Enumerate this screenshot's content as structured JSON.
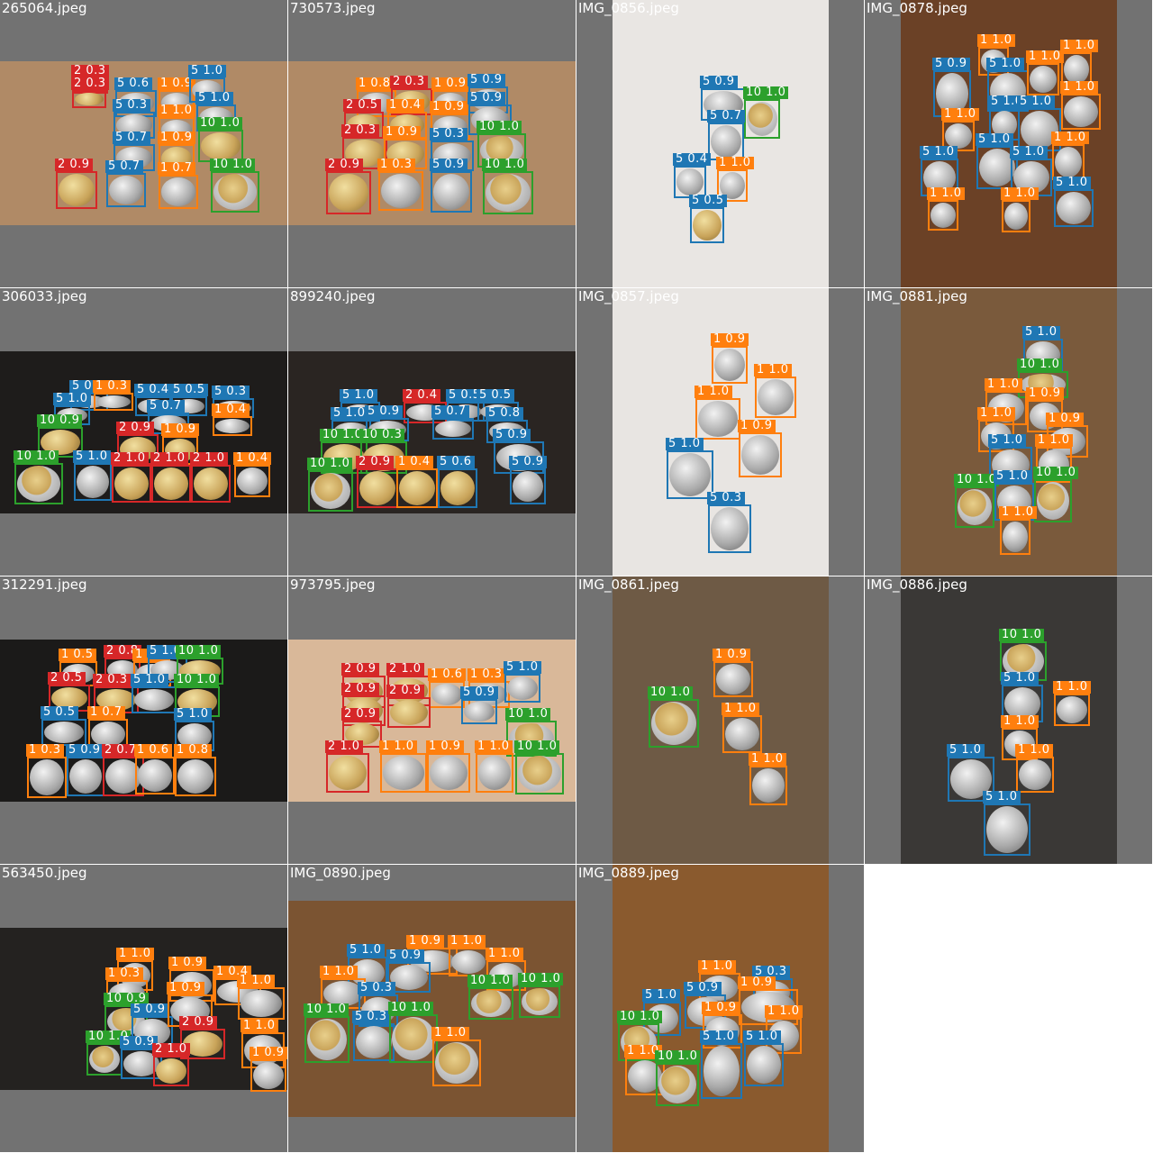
{
  "tiles": [
    {
      "file": "265064.jpeg",
      "bg": "#b08a66",
      "boxes": [
        {
          "label": "2 0.3",
          "cls": 2
        },
        {
          "label": "2 0.3",
          "cls": 2
        },
        {
          "label": "5 0.6",
          "cls": 5
        },
        {
          "label": "1 0.9",
          "cls": 1
        },
        {
          "label": "5 1.0",
          "cls": 5
        },
        {
          "label": "5 1.0",
          "cls": 5
        },
        {
          "label": "5 0.3",
          "cls": 5
        },
        {
          "label": "1 1.0",
          "cls": 1
        },
        {
          "label": "10 1.0",
          "cls": 10
        },
        {
          "label": "5 0.7",
          "cls": 5
        },
        {
          "label": "1 0.9",
          "cls": 1
        },
        {
          "label": "2 0.9",
          "cls": 2
        },
        {
          "label": "5 0.7",
          "cls": 5
        },
        {
          "label": "1 0.7",
          "cls": 1
        },
        {
          "label": "10 1.0",
          "cls": 10
        }
      ]
    },
    {
      "file": "730573.jpeg",
      "bg": "#b08a66",
      "boxes": [
        {
          "label": "1 0.8",
          "cls": 1
        },
        {
          "label": "2 0.3",
          "cls": 2
        },
        {
          "label": "1 0.9",
          "cls": 1
        },
        {
          "label": "5 0.9",
          "cls": 5
        },
        {
          "label": "2 0.5",
          "cls": 2
        },
        {
          "label": "1 0.4",
          "cls": 1
        },
        {
          "label": "1 0.9",
          "cls": 1
        },
        {
          "label": "5 0.9",
          "cls": 5
        },
        {
          "label": "2 0.3",
          "cls": 2
        },
        {
          "label": "1 0.9",
          "cls": 1
        },
        {
          "label": "5 0.3",
          "cls": 5
        },
        {
          "label": "10 1.0",
          "cls": 10
        },
        {
          "label": "2 0.9",
          "cls": 2
        },
        {
          "label": "1 0.3",
          "cls": 1
        },
        {
          "label": "5 0.9",
          "cls": 5
        },
        {
          "label": "10 1.0",
          "cls": 10
        }
      ]
    },
    {
      "file": "IMG_0856.jpeg",
      "bg": "#e9e6e3",
      "boxes": [
        {
          "label": "5 0.9",
          "cls": 5
        },
        {
          "label": "10 1.0",
          "cls": 10
        },
        {
          "label": "5 0.7",
          "cls": 5
        },
        {
          "label": "5 0.4",
          "cls": 5
        },
        {
          "label": "1 1.0",
          "cls": 1
        },
        {
          "label": "5 0.5",
          "cls": 5
        }
      ]
    },
    {
      "file": "IMG_0878.jpeg",
      "bg": "#6b4126",
      "boxes": [
        {
          "label": "1 1.0",
          "cls": 1
        },
        {
          "label": "5 0.9",
          "cls": 5
        },
        {
          "label": "5 1.0",
          "cls": 5
        },
        {
          "label": "1 1.0",
          "cls": 1
        },
        {
          "label": "1 1.0",
          "cls": 1
        },
        {
          "label": "1 1.0",
          "cls": 1
        },
        {
          "label": "1 1.0",
          "cls": 1
        },
        {
          "label": "5 1.0",
          "cls": 5
        },
        {
          "label": "5 1.0",
          "cls": 5
        },
        {
          "label": "5 1.0",
          "cls": 5
        },
        {
          "label": "1 1.0",
          "cls": 1
        },
        {
          "label": "5 1.0",
          "cls": 5
        },
        {
          "label": "1 1.0",
          "cls": 1
        },
        {
          "label": "5 1.0",
          "cls": 5
        },
        {
          "label": "1 1.0",
          "cls": 1
        },
        {
          "label": "5 1.0",
          "cls": 5
        }
      ]
    },
    {
      "file": "306033.jpeg",
      "bg": "#1e1c1b",
      "boxes": [
        {
          "label": "5 0.6",
          "cls": 5
        },
        {
          "label": "1 0.3",
          "cls": 1
        },
        {
          "label": "5 0.4",
          "cls": 5
        },
        {
          "label": "5 0.5",
          "cls": 5
        },
        {
          "label": "5 0.3",
          "cls": 5
        },
        {
          "label": "5 1.0",
          "cls": 5
        },
        {
          "label": "5 0.7",
          "cls": 5
        },
        {
          "label": "1 0.4",
          "cls": 1
        },
        {
          "label": "10 0.9",
          "cls": 10
        },
        {
          "label": "2 0.9",
          "cls": 2
        },
        {
          "label": "1 0.9",
          "cls": 1
        },
        {
          "label": "10 1.0",
          "cls": 10
        },
        {
          "label": "5 1.0",
          "cls": 5
        },
        {
          "label": "2 1.0",
          "cls": 2
        },
        {
          "label": "2 1.0",
          "cls": 2
        },
        {
          "label": "2 1.0",
          "cls": 2
        },
        {
          "label": "1 0.4",
          "cls": 1
        }
      ]
    },
    {
      "file": "899240.jpeg",
      "bg": "#2a2522",
      "boxes": [
        {
          "label": "5 1.0",
          "cls": 5
        },
        {
          "label": "2 0.4",
          "cls": 2
        },
        {
          "label": "5 0.5",
          "cls": 5
        },
        {
          "label": "5 0.5",
          "cls": 5
        },
        {
          "label": "5 1.0",
          "cls": 5
        },
        {
          "label": "5 0.9",
          "cls": 5
        },
        {
          "label": "5 0.7",
          "cls": 5
        },
        {
          "label": "5 0.8",
          "cls": 5
        },
        {
          "label": "10 1.0",
          "cls": 10
        },
        {
          "label": "10 0.3",
          "cls": 10
        },
        {
          "label": "5 0.9",
          "cls": 5
        },
        {
          "label": "10 1.0",
          "cls": 10
        },
        {
          "label": "2 0.9",
          "cls": 2
        },
        {
          "label": "1 0.4",
          "cls": 1
        },
        {
          "label": "5 0.6",
          "cls": 5
        },
        {
          "label": "5 0.9",
          "cls": 5
        }
      ]
    },
    {
      "file": "IMG_0857.jpeg",
      "bg": "#e8e5e2",
      "boxes": [
        {
          "label": "1 0.9",
          "cls": 1
        },
        {
          "label": "1 1.0",
          "cls": 1
        },
        {
          "label": "1 1.0",
          "cls": 1
        },
        {
          "label": "1 0.9",
          "cls": 1
        },
        {
          "label": "5 1.0",
          "cls": 5
        },
        {
          "label": "5 0.3",
          "cls": 5
        }
      ]
    },
    {
      "file": "IMG_0881.jpeg",
      "bg": "#7a5a3c",
      "boxes": [
        {
          "label": "5 1.0",
          "cls": 5
        },
        {
          "label": "10 1.0",
          "cls": 10
        },
        {
          "label": "1 1.0",
          "cls": 1
        },
        {
          "label": "1 0.9",
          "cls": 1
        },
        {
          "label": "1 1.0",
          "cls": 1
        },
        {
          "label": "1 0.9",
          "cls": 1
        },
        {
          "label": "5 1.0",
          "cls": 5
        },
        {
          "label": "1 1.0",
          "cls": 1
        },
        {
          "label": "10 1.0",
          "cls": 10
        },
        {
          "label": "5 1.0",
          "cls": 5
        },
        {
          "label": "10 1.0",
          "cls": 10
        },
        {
          "label": "1 1.0",
          "cls": 1
        }
      ]
    },
    {
      "file": "312291.jpeg",
      "bg": "#1b1a19",
      "boxes": [
        {
          "label": "1 0.5",
          "cls": 1
        },
        {
          "label": "2 0.8",
          "cls": 2
        },
        {
          "label": "1 0.8",
          "cls": 1
        },
        {
          "label": "5 1.0",
          "cls": 5
        },
        {
          "label": "10 1.0",
          "cls": 10
        },
        {
          "label": "2 0.5",
          "cls": 2
        },
        {
          "label": "2 0.3",
          "cls": 2
        },
        {
          "label": "5 1.0",
          "cls": 5
        },
        {
          "label": "10 1.0",
          "cls": 10
        },
        {
          "label": "5 0.5",
          "cls": 5
        },
        {
          "label": "1 0.7",
          "cls": 1
        },
        {
          "label": "5 1.0",
          "cls": 5
        },
        {
          "label": "1 0.3",
          "cls": 1
        },
        {
          "label": "5 0.9",
          "cls": 5
        },
        {
          "label": "2 0.7",
          "cls": 2
        },
        {
          "label": "1 0.6",
          "cls": 1
        },
        {
          "label": "1 0.8",
          "cls": 1
        }
      ]
    },
    {
      "file": "973795.jpeg",
      "bg": "#d9b899",
      "boxes": [
        {
          "label": "2 0.9",
          "cls": 2
        },
        {
          "label": "2 1.0",
          "cls": 2
        },
        {
          "label": "1 0.6",
          "cls": 1
        },
        {
          "label": "1 0.3",
          "cls": 1
        },
        {
          "label": "5 1.0",
          "cls": 5
        },
        {
          "label": "2 0.9",
          "cls": 2
        },
        {
          "label": "2 0.9",
          "cls": 2
        },
        {
          "label": "5 0.9",
          "cls": 5
        },
        {
          "label": "2 0.9",
          "cls": 2
        },
        {
          "label": "10 1.0",
          "cls": 10
        },
        {
          "label": "2 1.0",
          "cls": 2
        },
        {
          "label": "1 1.0",
          "cls": 1
        },
        {
          "label": "1 0.9",
          "cls": 1
        },
        {
          "label": "1 1.0",
          "cls": 1
        },
        {
          "label": "10 1.0",
          "cls": 10
        }
      ]
    },
    {
      "file": "IMG_0861.jpeg",
      "bg": "#6e5a45",
      "boxes": [
        {
          "label": "1 0.9",
          "cls": 1
        },
        {
          "label": "10 1.0",
          "cls": 10
        },
        {
          "label": "1 1.0",
          "cls": 1
        },
        {
          "label": "1 1.0",
          "cls": 1
        }
      ]
    },
    {
      "file": "IMG_0886.jpeg",
      "bg": "#3a3836",
      "boxes": [
        {
          "label": "10 1.0",
          "cls": 10
        },
        {
          "label": "5 1.0",
          "cls": 5
        },
        {
          "label": "1 1.0",
          "cls": 1
        },
        {
          "label": "1 1.0",
          "cls": 1
        },
        {
          "label": "5 1.0",
          "cls": 5
        },
        {
          "label": "1 1.0",
          "cls": 1
        },
        {
          "label": "5 1.0",
          "cls": 5
        }
      ]
    },
    {
      "file": "563450.jpeg",
      "bg": "#242220",
      "boxes": [
        {
          "label": "1 1.0",
          "cls": 1
        },
        {
          "label": "1 0.3",
          "cls": 1
        },
        {
          "label": "1 0.9",
          "cls": 1
        },
        {
          "label": "1 0.4",
          "cls": 1
        },
        {
          "label": "1 1.0",
          "cls": 1
        },
        {
          "label": "10 0.9",
          "cls": 10
        },
        {
          "label": "5 0.9",
          "cls": 5
        },
        {
          "label": "1 0.9",
          "cls": 1
        },
        {
          "label": "2 0.9",
          "cls": 2
        },
        {
          "label": "10 1.0",
          "cls": 10
        },
        {
          "label": "5 0.9",
          "cls": 5
        },
        {
          "label": "2 1.0",
          "cls": 2
        },
        {
          "label": "1 1.0",
          "cls": 1
        },
        {
          "label": "1 0.9",
          "cls": 1
        }
      ]
    },
    {
      "file": "IMG_0890.jpeg",
      "bg": "#7b5432",
      "boxes": [
        {
          "label": "1 0.9",
          "cls": 1
        },
        {
          "label": "1 1.0",
          "cls": 1
        },
        {
          "label": "5 1.0",
          "cls": 5
        },
        {
          "label": "5 0.9",
          "cls": 5
        },
        {
          "label": "1 1.0",
          "cls": 1
        },
        {
          "label": "1 1.0",
          "cls": 1
        },
        {
          "label": "5 0.3",
          "cls": 5
        },
        {
          "label": "10 1.0",
          "cls": 10
        },
        {
          "label": "10 1.0",
          "cls": 10
        },
        {
          "label": "10 1.0",
          "cls": 10
        },
        {
          "label": "5 0.3",
          "cls": 5
        },
        {
          "label": "10 1.0",
          "cls": 10
        },
        {
          "label": "1 1.0",
          "cls": 1
        }
      ]
    },
    {
      "file": "IMG_0889.jpeg",
      "bg": "#8a5a2e",
      "boxes": [
        {
          "label": "1 1.0",
          "cls": 1
        },
        {
          "label": "5 0.3",
          "cls": 5
        },
        {
          "label": "5 1.0",
          "cls": 5
        },
        {
          "label": "5 0.9",
          "cls": 5
        },
        {
          "label": "1 0.9",
          "cls": 1
        },
        {
          "label": "10 1.0",
          "cls": 10
        },
        {
          "label": "1 0.9",
          "cls": 1
        },
        {
          "label": "1 1.0",
          "cls": 1
        },
        {
          "label": "5 1.0",
          "cls": 5
        },
        {
          "label": "1 1.0",
          "cls": 1
        },
        {
          "label": "5 1.0",
          "cls": 5
        },
        {
          "label": "10 1.0",
          "cls": 10
        }
      ]
    }
  ]
}
